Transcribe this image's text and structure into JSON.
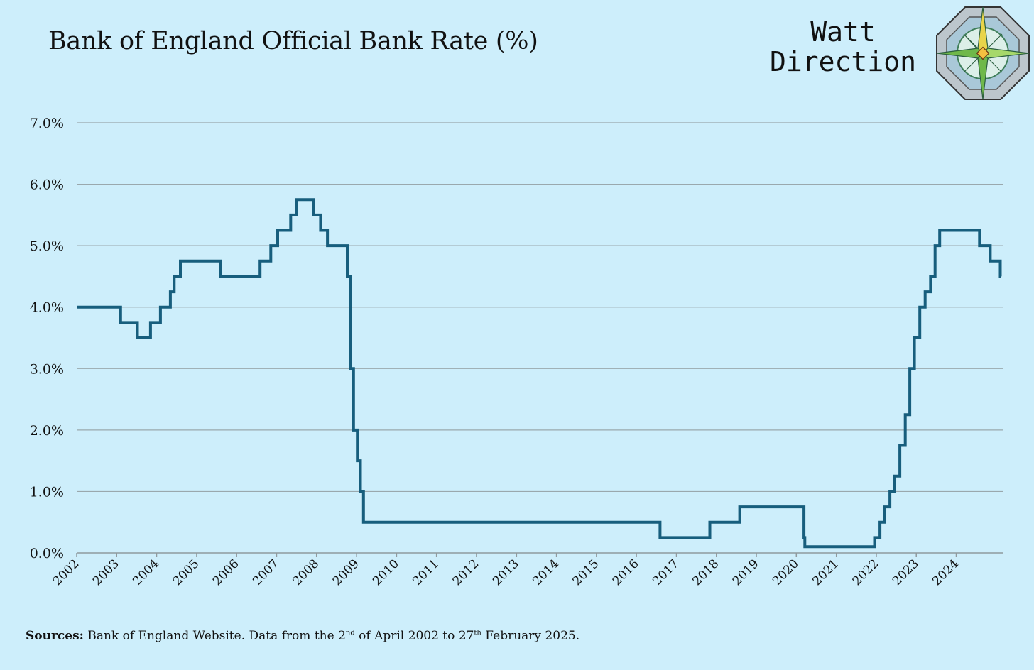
{
  "brand": {
    "line1": "Watt",
    "line2": "Direction",
    "logo_icon": "compass-rose-icon"
  },
  "source": {
    "label": "Sources:",
    "part1": " Bank of England Website. Data from the 2",
    "sup1": "nd",
    "part2": " of April 2002 to 27",
    "sup2": "th",
    "part3": " February 2025."
  },
  "chart_data": {
    "type": "line",
    "title": "Bank of England Official Bank Rate (%)",
    "xlabel": "",
    "ylabel": "",
    "xlim": [
      "2002-01-01",
      "2025-03-01"
    ],
    "ylim": [
      0,
      7
    ],
    "y_ticks": [
      "0.0%",
      "1.0%",
      "2.0%",
      "3.0%",
      "4.0%",
      "5.0%",
      "6.0%",
      "7.0%"
    ],
    "y_tick_values": [
      0,
      1,
      2,
      3,
      4,
      5,
      6,
      7
    ],
    "x_ticks": [
      "2002",
      "2003",
      "2004",
      "2005",
      "2006",
      "2007",
      "2008",
      "2009",
      "2010",
      "2011",
      "2012",
      "2013",
      "2014",
      "2015",
      "2016",
      "2017",
      "2018",
      "2019",
      "2020",
      "2021",
      "2022",
      "2023",
      "2024"
    ],
    "grid": "horizontal",
    "legend": "none",
    "color": "#175e7d",
    "step": true,
    "series": [
      {
        "name": "",
        "x": [
          "2002-01-01",
          "2003-02-06",
          "2003-07-10",
          "2003-11-06",
          "2004-02-05",
          "2004-05-06",
          "2004-06-10",
          "2004-08-05",
          "2005-08-04",
          "2006-08-03",
          "2006-11-09",
          "2007-01-11",
          "2007-05-10",
          "2007-07-05",
          "2007-12-06",
          "2008-02-07",
          "2008-04-10",
          "2008-10-08",
          "2008-11-06",
          "2008-12-04",
          "2009-01-08",
          "2009-02-05",
          "2009-03-05",
          "2016-08-04",
          "2017-11-02",
          "2018-08-02",
          "2020-03-11",
          "2020-03-19",
          "2021-12-16",
          "2022-02-03",
          "2022-03-17",
          "2022-05-05",
          "2022-06-16",
          "2022-08-04",
          "2022-09-22",
          "2022-11-03",
          "2022-12-15",
          "2023-02-02",
          "2023-03-23",
          "2023-05-11",
          "2023-06-22",
          "2023-08-03",
          "2024-08-01",
          "2024-11-07",
          "2025-02-06"
        ],
        "y": [
          4.0,
          3.75,
          3.5,
          3.75,
          4.0,
          4.25,
          4.5,
          4.75,
          4.5,
          4.75,
          5.0,
          5.25,
          5.5,
          5.75,
          5.5,
          5.25,
          5.0,
          4.5,
          3.0,
          2.0,
          1.5,
          1.0,
          0.5,
          0.25,
          0.5,
          0.75,
          0.25,
          0.1,
          0.25,
          0.5,
          0.75,
          1.0,
          1.25,
          1.75,
          2.25,
          3.0,
          3.5,
          4.0,
          4.25,
          4.5,
          5.0,
          5.25,
          5.0,
          4.75,
          4.5
        ]
      }
    ]
  }
}
